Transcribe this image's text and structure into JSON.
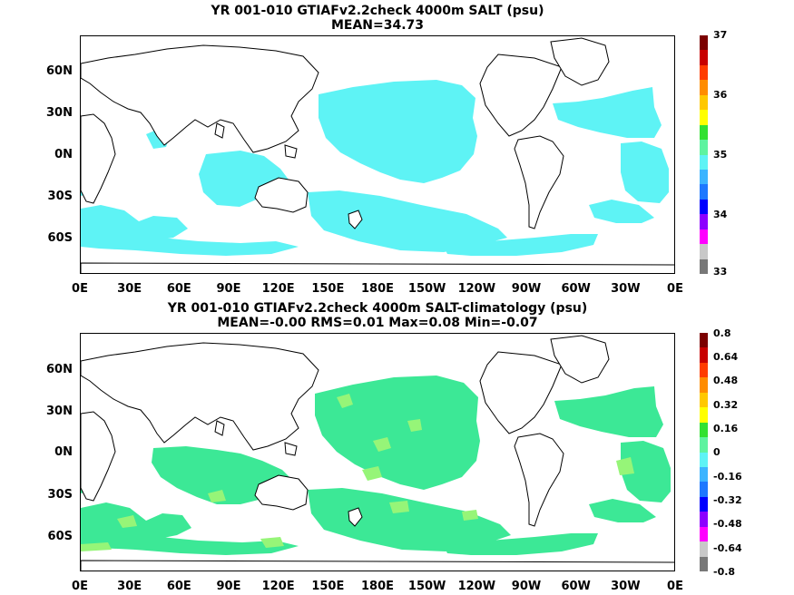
{
  "panels": [
    {
      "title1": "YR 001-010 GTIAFv2.2check 4000m SALT (psu)",
      "title2": "MEAN=34.73",
      "fill_color": "#5ef3f5",
      "accent_color": "#5ef3f5",
      "colorbar_labels": [
        "37",
        "36",
        "35",
        "34",
        "33"
      ],
      "colorbar_colors": [
        "#7b0000",
        "#c80000",
        "#ff3c00",
        "#ff8c00",
        "#ffc800",
        "#ffff00",
        "#32e132",
        "#5ef3a0",
        "#5ef3f5",
        "#3cb4ff",
        "#1e78ff",
        "#0000ff",
        "#8c00ff",
        "#ff00ff",
        "#c8c8c8",
        "#787878"
      ]
    },
    {
      "title1": "YR 001-010 GTIAFv2.2check 4000m SALT-climatology (psu)",
      "title2": "MEAN=-0.00   RMS=0.01   Max=0.08   Min=-0.07",
      "fill_color": "#3ce896",
      "accent_color": "#96f578",
      "colorbar_labels": [
        "0.8",
        "0.64",
        "0.48",
        "0.32",
        "0.16",
        "0",
        "-0.16",
        "-0.32",
        "-0.48",
        "-0.64",
        "-0.8"
      ],
      "colorbar_colors": [
        "#7b0000",
        "#c80000",
        "#ff3c00",
        "#ff8c00",
        "#ffc800",
        "#ffff00",
        "#32e132",
        "#5ef3a0",
        "#5ef3f5",
        "#3cb4ff",
        "#1e78ff",
        "#0000ff",
        "#8c00ff",
        "#ff00ff",
        "#c8c8c8",
        "#787878"
      ]
    }
  ],
  "y_ticks": [
    "60N",
    "30N",
    "0N",
    "30S",
    "60S"
  ],
  "x_ticks": [
    "0E",
    "30E",
    "60E",
    "90E",
    "120E",
    "150E",
    "180E",
    "150W",
    "120W",
    "90W",
    "60W",
    "30W",
    "0E"
  ]
}
